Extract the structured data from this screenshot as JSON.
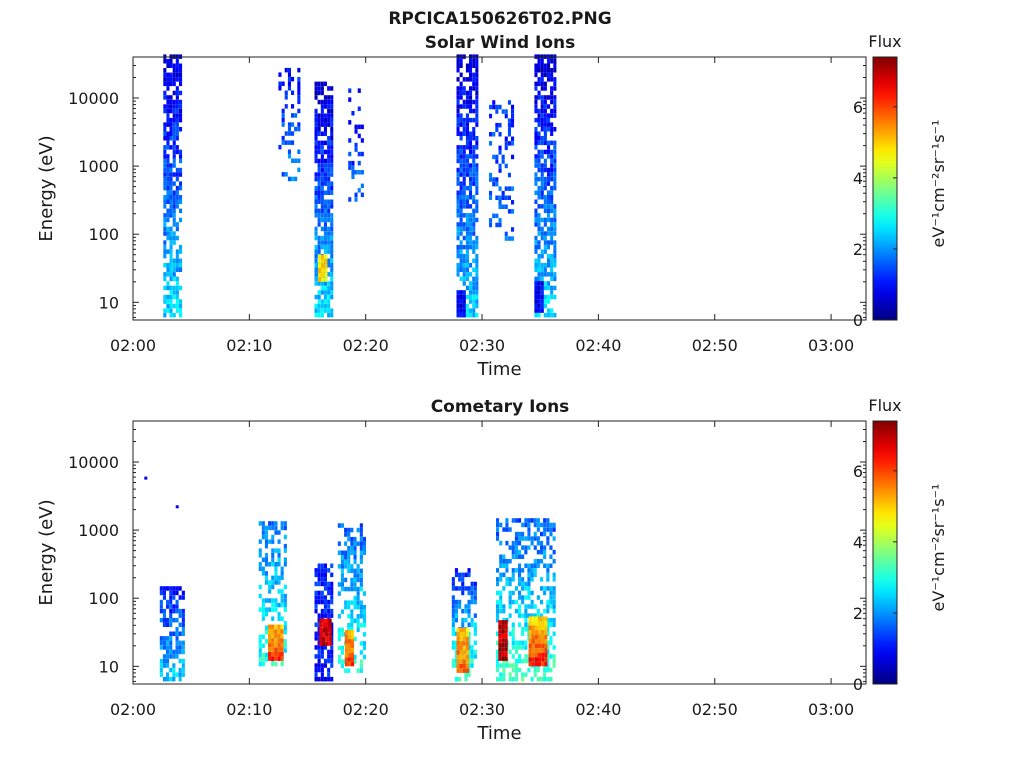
{
  "figure": {
    "title": "RPCICA150626T02.PNG"
  },
  "colorbar": {
    "label": "Flux",
    "unit_text": "eV⁻¹cm⁻²sr⁻¹s⁻¹",
    "ticks": [
      "0",
      "2",
      "4",
      "6"
    ],
    "colormap": "jet",
    "range": [
      0,
      7.4
    ]
  },
  "chart_data": [
    {
      "type": "heatmap",
      "title": "Solar Wind Ions",
      "xlabel": "Time",
      "ylabel": "Energy (eV)",
      "x_ticks": [
        "02:00",
        "02:10",
        "02:20",
        "02:30",
        "02:40",
        "02:50",
        "03:00"
      ],
      "y_ticks": [
        "10",
        "100",
        "1000",
        "10000"
      ],
      "x_range_minutes": [
        0,
        63
      ],
      "y_range_eV": [
        5.5,
        40000
      ],
      "y_scale": "log",
      "z_label": "Flux",
      "z_range": [
        0,
        7.4
      ],
      "bursts": [
        {
          "t_start": 2.6,
          "t_end": 4.0,
          "e_min": 6,
          "e_max": 40000,
          "low_energy_flux": 2.5,
          "high_energy_flux": 0.6,
          "density": 0.75
        },
        {
          "t_start": 12.5,
          "t_end": 14.2,
          "e_min": 600,
          "e_max": 27000,
          "low_energy_flux": 1.8,
          "high_energy_flux": 1.0,
          "density": 0.35
        },
        {
          "t_start": 15.6,
          "t_end": 17.0,
          "e_min": 6,
          "e_max": 16000,
          "low_energy_flux": 2.6,
          "high_energy_flux": 0.5,
          "density": 0.8
        },
        {
          "t_start": 15.9,
          "t_end": 16.6,
          "e_min": 20,
          "e_max": 50,
          "low_energy_flux": 4.8,
          "high_energy_flux": 4.8,
          "density": 1.0
        },
        {
          "t_start": 18.5,
          "t_end": 19.8,
          "e_min": 300,
          "e_max": 12000,
          "low_energy_flux": 1.6,
          "high_energy_flux": 1.0,
          "density": 0.3
        },
        {
          "t_start": 27.8,
          "t_end": 29.6,
          "e_min": 6,
          "e_max": 40000,
          "low_energy_flux": 2.4,
          "high_energy_flux": 0.6,
          "density": 0.75
        },
        {
          "t_start": 27.8,
          "t_end": 28.4,
          "e_min": 6,
          "e_max": 14,
          "low_energy_flux": 0.8,
          "high_energy_flux": 0.8,
          "density": 1.0
        },
        {
          "t_start": 30.6,
          "t_end": 32.6,
          "e_min": 80,
          "e_max": 9000,
          "low_energy_flux": 1.7,
          "high_energy_flux": 1.2,
          "density": 0.3
        },
        {
          "t_start": 34.5,
          "t_end": 36.2,
          "e_min": 6,
          "e_max": 40000,
          "low_energy_flux": 2.5,
          "high_energy_flux": 0.6,
          "density": 0.75
        },
        {
          "t_start": 34.5,
          "t_end": 35.1,
          "e_min": 7,
          "e_max": 18,
          "low_energy_flux": 0.9,
          "high_energy_flux": 0.9,
          "density": 1.0
        }
      ]
    },
    {
      "type": "heatmap",
      "title": "Cometary Ions",
      "xlabel": "Time",
      "ylabel": "Energy (eV)",
      "x_ticks": [
        "02:00",
        "02:10",
        "02:20",
        "02:30",
        "02:40",
        "02:50",
        "03:00"
      ],
      "y_ticks": [
        "10",
        "100",
        "1000",
        "10000"
      ],
      "x_range_minutes": [
        0,
        63
      ],
      "y_range_eV": [
        5.5,
        40000
      ],
      "y_scale": "log",
      "z_label": "Flux",
      "z_range": [
        0,
        7.4
      ],
      "bursts": [
        {
          "t_start": 2.3,
          "t_end": 4.2,
          "e_min": 6,
          "e_max": 150,
          "low_energy_flux": 2.4,
          "high_energy_flux": 1.0,
          "density": 0.7
        },
        {
          "t_start": 10.8,
          "t_end": 13.0,
          "e_min": 10,
          "e_max": 1300,
          "low_energy_flux": 3.0,
          "high_energy_flux": 1.8,
          "density": 0.55
        },
        {
          "t_start": 11.6,
          "t_end": 12.8,
          "e_min": 12,
          "e_max": 40,
          "low_energy_flux": 6.2,
          "high_energy_flux": 5.0,
          "density": 1.0
        },
        {
          "t_start": 15.6,
          "t_end": 17.0,
          "e_min": 6,
          "e_max": 300,
          "low_energy_flux": 1.0,
          "high_energy_flux": 1.2,
          "density": 0.75
        },
        {
          "t_start": 16.0,
          "t_end": 17.0,
          "e_min": 20,
          "e_max": 45,
          "low_energy_flux": 6.8,
          "high_energy_flux": 6.8,
          "density": 1.0
        },
        {
          "t_start": 17.6,
          "t_end": 19.8,
          "e_min": 8,
          "e_max": 1100,
          "low_energy_flux": 3.0,
          "high_energy_flux": 1.6,
          "density": 0.5
        },
        {
          "t_start": 18.2,
          "t_end": 19.0,
          "e_min": 10,
          "e_max": 30,
          "low_energy_flux": 6.0,
          "high_energy_flux": 5.2,
          "density": 1.0
        },
        {
          "t_start": 27.4,
          "t_end": 29.4,
          "e_min": 6,
          "e_max": 250,
          "low_energy_flux": 3.2,
          "high_energy_flux": 1.2,
          "density": 0.6
        },
        {
          "t_start": 27.8,
          "t_end": 28.8,
          "e_min": 8,
          "e_max": 35,
          "low_energy_flux": 5.8,
          "high_energy_flux": 5.0,
          "density": 1.0
        },
        {
          "t_start": 31.2,
          "t_end": 36.2,
          "e_min": 6,
          "e_max": 1400,
          "low_energy_flux": 3.2,
          "high_energy_flux": 1.6,
          "density": 0.55
        },
        {
          "t_start": 31.4,
          "t_end": 32.2,
          "e_min": 12,
          "e_max": 45,
          "low_energy_flux": 6.9,
          "high_energy_flux": 6.9,
          "density": 1.0
        },
        {
          "t_start": 34.0,
          "t_end": 35.6,
          "e_min": 10,
          "e_max": 50,
          "low_energy_flux": 6.3,
          "high_energy_flux": 5.0,
          "density": 1.0
        }
      ],
      "isolated_points": [
        {
          "t": 1.1,
          "e": 5800,
          "flux": 0.9
        },
        {
          "t": 3.8,
          "e": 2200,
          "flux": 0.9
        }
      ]
    }
  ]
}
